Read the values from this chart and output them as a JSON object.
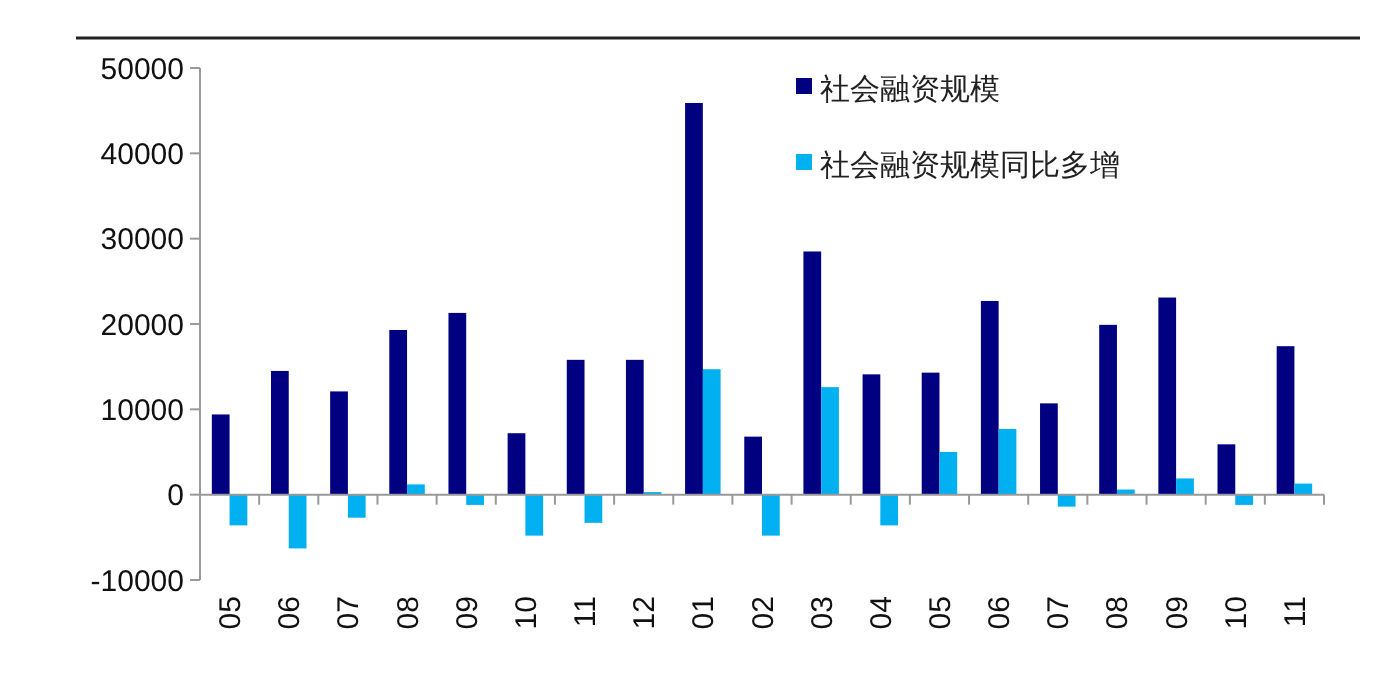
{
  "chart_data": {
    "type": "bar",
    "categories": [
      "05",
      "06",
      "07",
      "08",
      "09",
      "10",
      "11",
      "12",
      "01",
      "02",
      "03",
      "04",
      "05",
      "06",
      "07",
      "08",
      "09",
      "10",
      "11"
    ],
    "series": [
      {
        "name": "社会融资规模",
        "color": "#000080",
        "values": [
          9400,
          14500,
          12100,
          19300,
          21300,
          7200,
          15800,
          15800,
          45900,
          6800,
          28500,
          14100,
          14300,
          22700,
          10700,
          19900,
          23100,
          5900,
          17400
        ]
      },
      {
        "name": "社会融资规模同比多增",
        "color": "#00b0f0",
        "values": [
          -3600,
          -6300,
          -2700,
          1200,
          -1200,
          -4800,
          -3300,
          300,
          14700,
          -4800,
          12600,
          -3600,
          5000,
          7700,
          -1400,
          600,
          1900,
          -1200,
          1300
        ]
      }
    ],
    "ylim": [
      -10000,
      50000
    ],
    "yticks": [
      -10000,
      0,
      10000,
      20000,
      30000,
      40000,
      50000
    ],
    "legend": "top right"
  }
}
